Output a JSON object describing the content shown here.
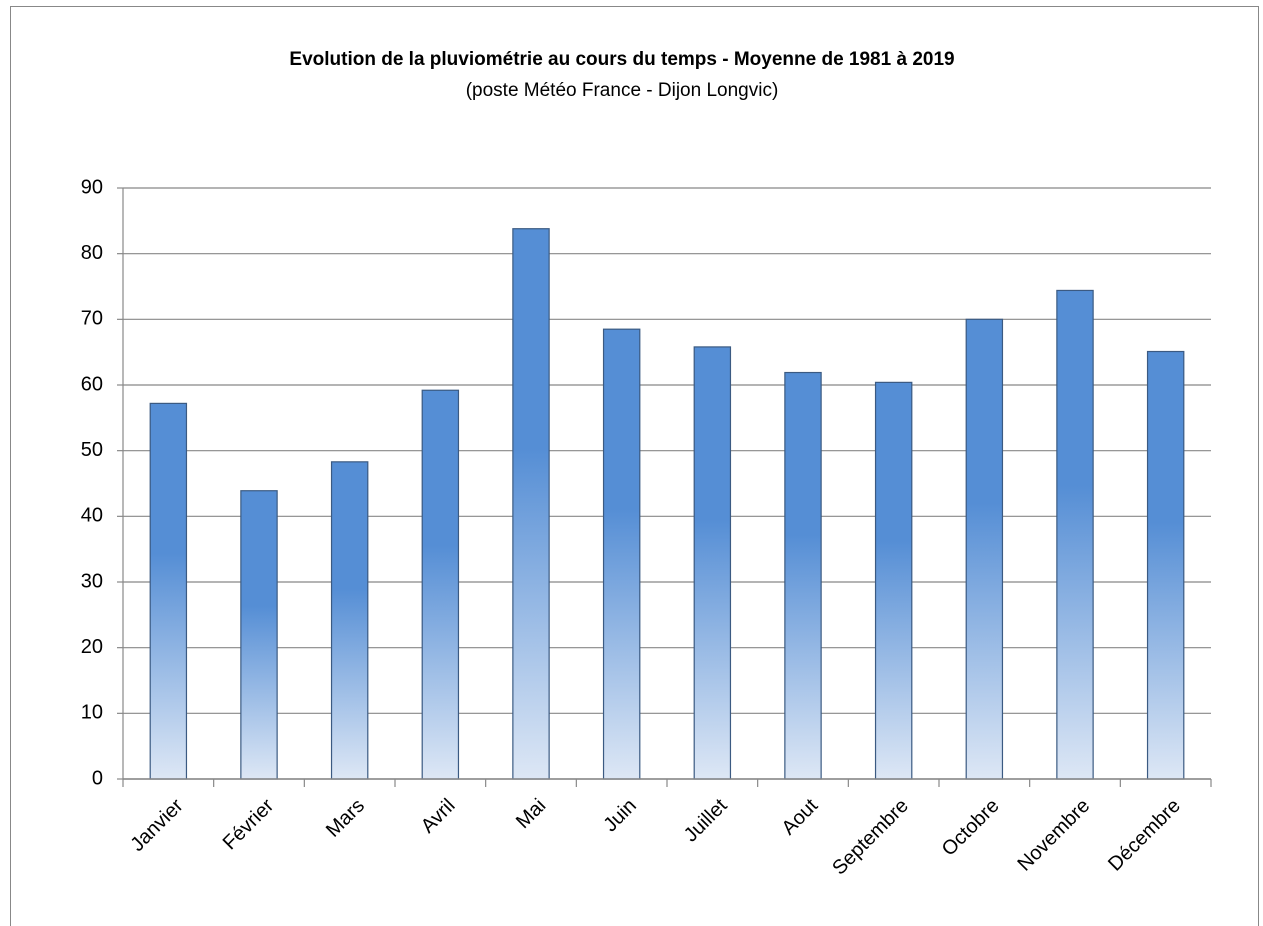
{
  "chart_data": {
    "type": "bar",
    "title": "Evolution de la pluviométrie au cours du temps - Moyenne de 1981 à 2019",
    "subtitle": "(poste Météo France - Dijon Longvic)",
    "categories": [
      "Janvier",
      "Février",
      "Mars",
      "Avril",
      "Mai",
      "Juin",
      "Juillet",
      "Aout",
      "Septembre",
      "Octobre",
      "Novembre",
      "Décembre"
    ],
    "values": [
      57.2,
      43.9,
      48.3,
      59.2,
      83.8,
      68.5,
      65.8,
      61.9,
      60.4,
      70.0,
      74.4,
      65.1
    ],
    "color": "#558ed5",
    "ylim": [
      0,
      90
    ],
    "yticks": [
      0,
      10,
      20,
      30,
      40,
      50,
      60,
      70,
      80,
      90
    ],
    "grid": true
  }
}
